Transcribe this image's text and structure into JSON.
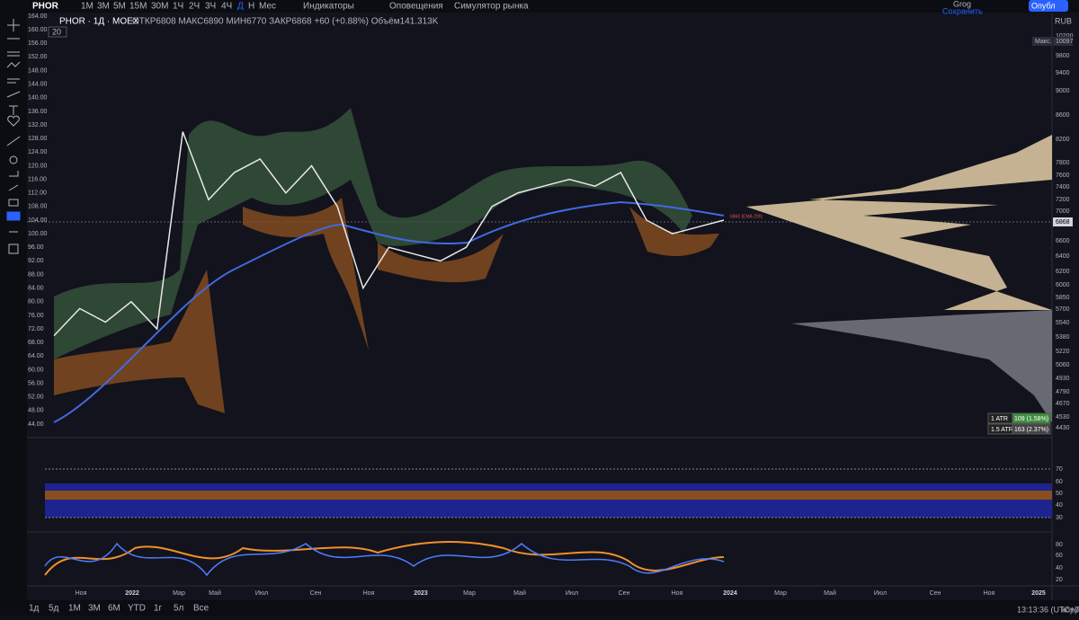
{
  "toolbar": {
    "symbol": "PHOR",
    "intervals": [
      "1М",
      "3М",
      "5М",
      "15М",
      "30М",
      "1Ч",
      "2Ч",
      "3Ч",
      "4Ч",
      "Д",
      "Н",
      "Мес"
    ],
    "indicators": "Индикаторы",
    "alerts": "Оповещения",
    "replay": "Симулятор рынка",
    "user": "Grog",
    "save": "Сохранить",
    "publish": "Опубл"
  },
  "legend": {
    "title": "PHOR · 1Д · MOEX",
    "ohlc": "ОТКР6808 МАКС6890 МИН6770 ЗАКР6868 +60 (+0.88%) Объём141.313K",
    "length": "20"
  },
  "price_axis": {
    "currency": "RUB",
    "max_label": "Макс.",
    "labels": [
      "10200",
      "10097",
      "9800",
      "9400",
      "9000",
      "8600",
      "8200",
      "7800",
      "7600",
      "7400",
      "7200",
      "7000",
      "6868",
      "6600",
      "6400",
      "6200",
      "6000",
      "5850",
      "5700",
      "5540",
      "5380",
      "5220",
      "5060",
      "4930",
      "4790",
      "4670",
      "4530",
      "4430"
    ]
  },
  "left_axis": {
    "labels": [
      "164.00",
      "160.00",
      "156.00",
      "152.00",
      "148.00",
      "144.00",
      "140.00",
      "136.00",
      "132.00",
      "128.00",
      "124.00",
      "120.00",
      "116.00",
      "112.00",
      "108.00",
      "104.00",
      "100.00",
      "96.00",
      "92.00",
      "88.00",
      "84.00",
      "80.00",
      "76.00",
      "72.00",
      "68.00",
      "64.00",
      "60.00",
      "56.00",
      "52.00",
      "48.00",
      "44.00"
    ]
  },
  "price_series": {
    "values": [
      70,
      78,
      74,
      80,
      72,
      130,
      110,
      118,
      122,
      112,
      120,
      108,
      84,
      96,
      94,
      92,
      96,
      108,
      112,
      114,
      116,
      114,
      118,
      104,
      100,
      102,
      104
    ],
    "ylim": [
      44,
      164
    ],
    "color": "#e8e8e8"
  },
  "ema_label": "6860 (EMA 200)",
  "atr": {
    "rows": [
      [
        "1 ATR",
        "109 (1.58%)"
      ],
      [
        "1.5 ATR",
        "163 (2.37%)"
      ]
    ]
  },
  "rsi_axis": [
    "70",
    "60",
    "50",
    "40",
    "30"
  ],
  "osc_axis": [
    "80",
    "60",
    "40",
    "20"
  ],
  "time_axis": [
    "Ноя",
    "2022",
    "Мар",
    "Май",
    "Июл",
    "Сен",
    "Ноя",
    "2023",
    "Мар",
    "Май",
    "Июл",
    "Сен",
    "Ноя",
    "2024",
    "Мар",
    "Май",
    "Июл",
    "Сен",
    "Ноя",
    "2025"
  ],
  "bottom_bar": {
    "ranges": [
      "1д",
      "5д",
      "1М",
      "3М",
      "6М",
      "YTD",
      "1г",
      "5л",
      "Все"
    ],
    "clock": "13:13:36 (UTC+7)",
    "adjust": "корр"
  }
}
